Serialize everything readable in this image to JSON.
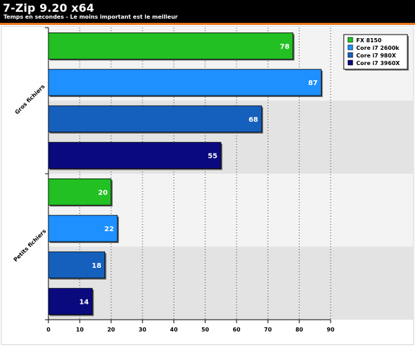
{
  "header": {
    "title": "7-Zip 9.20 x64",
    "subtitle": "Temps en secondes - Le moins important est le meilleur"
  },
  "colors": {
    "header_bg": "#000000",
    "accent": "#e8741a",
    "plot_bg_a": "#f3f3f3",
    "plot_bg_b": "#e3e3e3",
    "frame": "#cfcfcf",
    "grid": "#333333"
  },
  "chart_data": {
    "type": "bar",
    "orientation": "horizontal",
    "title": "7-Zip 9.20 x64",
    "subtitle": "Temps en secondes - Le moins important est le meilleur",
    "categories": [
      "Gros fichiers",
      "Petits fichiers"
    ],
    "series": [
      {
        "name": "FX 8150",
        "color": "#22c022",
        "values": [
          78,
          20
        ]
      },
      {
        "name": "Core i7 2600k",
        "color": "#1e90ff",
        "values": [
          87,
          22
        ]
      },
      {
        "name": "Core i7 980X",
        "color": "#1560bd",
        "values": [
          68,
          18
        ]
      },
      {
        "name": "Core i7 3960X",
        "color": "#0a0a7e",
        "values": [
          55,
          14
        ]
      }
    ],
    "xlim": [
      0,
      90
    ],
    "x_ticks": [
      0,
      10,
      20,
      30,
      40,
      50,
      60,
      70,
      80,
      90
    ],
    "grid": true,
    "legend_position": "top-right"
  }
}
